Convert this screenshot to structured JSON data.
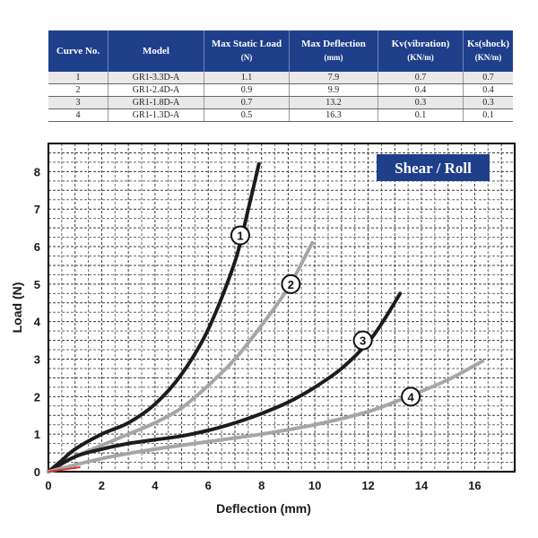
{
  "table": {
    "headers": [
      {
        "title": "Curve No.",
        "unit": ""
      },
      {
        "title": "Model",
        "unit": ""
      },
      {
        "title": "Max Static Load",
        "unit": "(N)"
      },
      {
        "title": "Max Deflection",
        "unit": "(mm)"
      },
      {
        "title": "Kv(vibration)",
        "unit": "(KN/m)"
      },
      {
        "title": "Ks(shock)",
        "unit": "(KN/m)"
      }
    ],
    "rows": [
      [
        "1",
        "GR1-3.3D-A",
        "1.1",
        "7.9",
        "0.7",
        "0.7"
      ],
      [
        "2",
        "GR1-2.4D-A",
        "0.9",
        "9.9",
        "0.4",
        "0.4"
      ],
      [
        "3",
        "GR1-1.8D-A",
        "0.7",
        "13.2",
        "0.3",
        "0.3"
      ],
      [
        "4",
        "GR1-1.3D-A",
        "0.5",
        "16.3",
        "0.1",
        "0.1"
      ]
    ]
  },
  "chart_data": {
    "type": "line",
    "title": "Shear / Roll",
    "xlabel": "Deflection (mm)",
    "ylabel": "Load (N)",
    "xlim": [
      0,
      17.5
    ],
    "ylim": [
      0,
      8.75
    ],
    "xticks": [
      "0",
      "2",
      "4",
      "6",
      "8",
      "10",
      "12",
      "14",
      "16"
    ],
    "yticks": [
      "0",
      "1",
      "2",
      "3",
      "4",
      "5",
      "6",
      "7",
      "8"
    ],
    "grid": true,
    "series": [
      {
        "name": "1",
        "color": "#1c1c1c",
        "points": [
          [
            0,
            0
          ],
          [
            0.5,
            0.3
          ],
          [
            1,
            0.6
          ],
          [
            2,
            1.0
          ],
          [
            3,
            1.3
          ],
          [
            4,
            1.8
          ],
          [
            5,
            2.6
          ],
          [
            6,
            3.8
          ],
          [
            7,
            5.6
          ],
          [
            7.5,
            7.0
          ],
          [
            7.9,
            8.2
          ]
        ],
        "label_at": [
          7.2,
          6.3
        ]
      },
      {
        "name": "2",
        "color": "#a6a6a6",
        "points": [
          [
            0,
            0
          ],
          [
            1,
            0.4
          ],
          [
            2,
            0.7
          ],
          [
            3,
            1.0
          ],
          [
            4,
            1.3
          ],
          [
            5,
            1.7
          ],
          [
            6,
            2.3
          ],
          [
            7,
            3.0
          ],
          [
            8,
            3.9
          ],
          [
            9,
            4.9
          ],
          [
            9.9,
            6.1
          ]
        ],
        "label_at": [
          9.1,
          5.0
        ]
      },
      {
        "name": "3",
        "color": "#1c1c1c",
        "points": [
          [
            0,
            0
          ],
          [
            1,
            0.4
          ],
          [
            2,
            0.6
          ],
          [
            3,
            0.75
          ],
          [
            4,
            0.85
          ],
          [
            5,
            0.95
          ],
          [
            6,
            1.1
          ],
          [
            7,
            1.3
          ],
          [
            8,
            1.55
          ],
          [
            9,
            1.85
          ],
          [
            10,
            2.25
          ],
          [
            11,
            2.75
          ],
          [
            12,
            3.45
          ],
          [
            12.6,
            4.05
          ],
          [
            13.2,
            4.75
          ]
        ],
        "label_at": [
          11.8,
          3.5
        ]
      },
      {
        "name": "4",
        "color": "#a6a6a6",
        "points": [
          [
            0,
            0
          ],
          [
            2,
            0.35
          ],
          [
            4,
            0.6
          ],
          [
            6,
            0.8
          ],
          [
            8,
            1.0
          ],
          [
            10,
            1.25
          ],
          [
            12,
            1.6
          ],
          [
            13.5,
            2.0
          ],
          [
            15,
            2.45
          ],
          [
            16.3,
            2.95
          ]
        ],
        "label_at": [
          13.6,
          2.0
        ]
      }
    ]
  }
}
